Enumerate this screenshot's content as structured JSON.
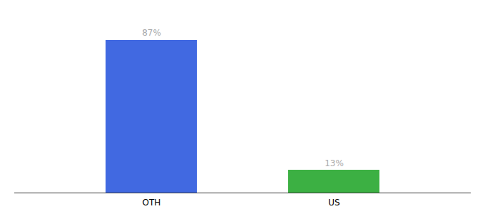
{
  "chart_data": {
    "type": "bar",
    "categories": [
      "OTH",
      "US"
    ],
    "values": [
      87,
      13
    ],
    "value_labels": [
      "87%",
      "13%"
    ],
    "colors": [
      "#4169e1",
      "#3cb043"
    ],
    "ylim": [
      0,
      100
    ],
    "data_labels": true,
    "tick_labels": "x"
  }
}
